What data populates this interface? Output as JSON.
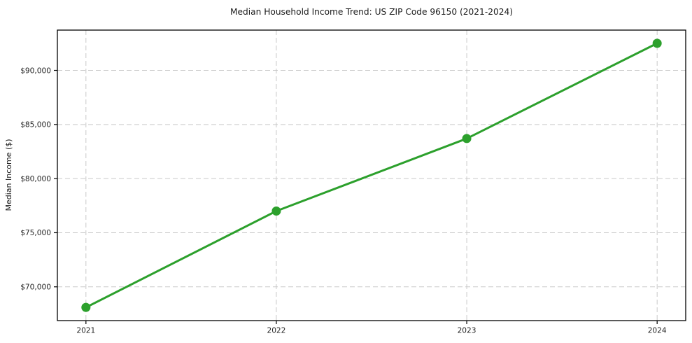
{
  "chart_data": {
    "type": "line",
    "title": "Median Household Income Trend: US ZIP Code 96150 (2021-2024)",
    "xlabel": "",
    "ylabel": "Median Income ($)",
    "categories": [
      "2021",
      "2022",
      "2023",
      "2024"
    ],
    "series": [
      {
        "name": "Median Household Income",
        "values": [
          68100,
          77000,
          83700,
          92500
        ]
      }
    ],
    "yticks": [
      70000,
      75000,
      80000,
      85000,
      90000
    ],
    "ytick_labels": [
      "$70,000",
      "$75,000",
      "$80,000",
      "$85,000",
      "$90,000"
    ],
    "ylim": [
      66880,
      93720
    ],
    "grid": true,
    "grid_style": "dashed",
    "legend": "none",
    "colors": {
      "line": "#2ca02c",
      "marker": "#2ca02c",
      "grid": "#c9c9c9",
      "spine": "#000000",
      "text": "#1a1a1a"
    }
  }
}
